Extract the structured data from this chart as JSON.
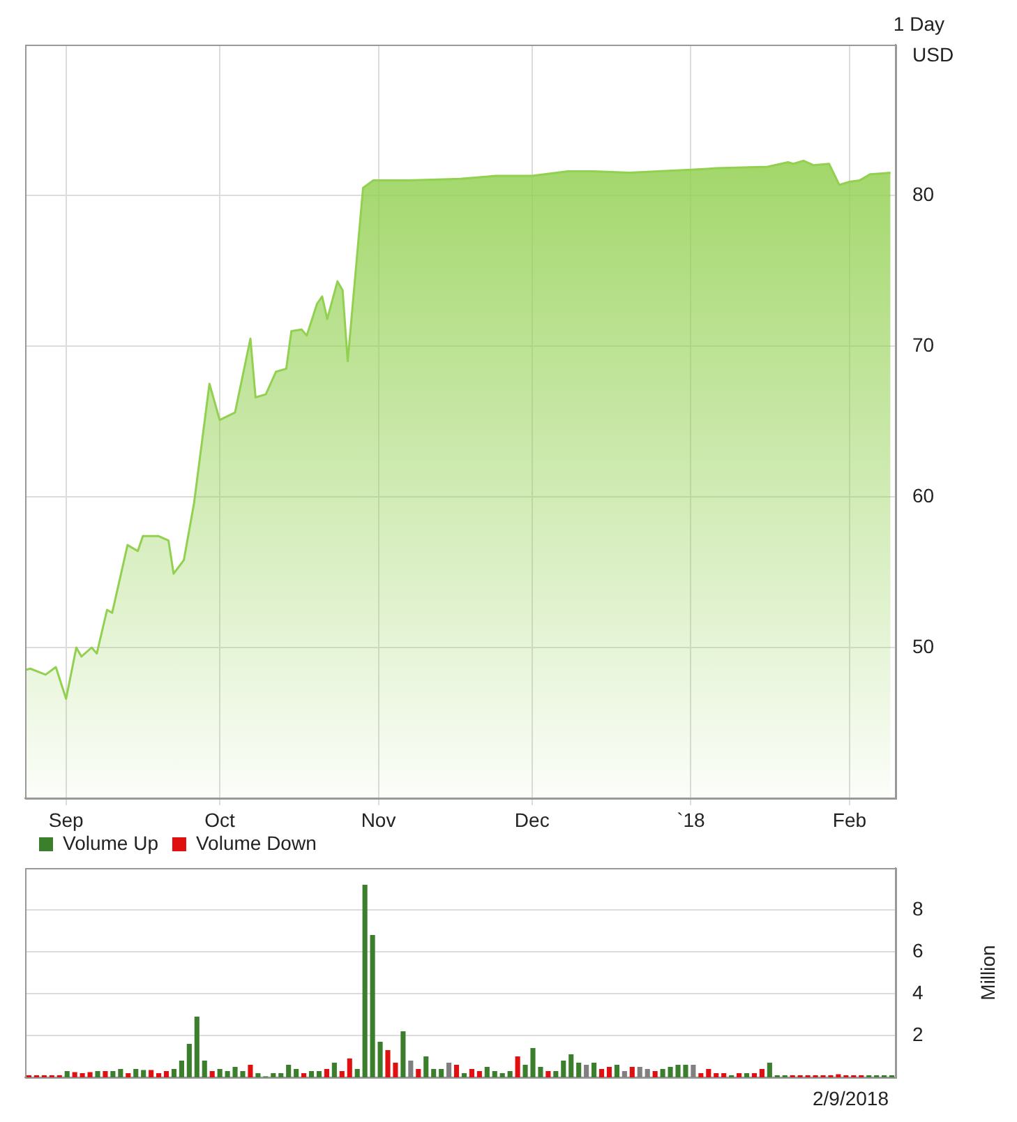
{
  "chart_data": [
    {
      "type": "area",
      "ylabel": "USD",
      "annotations": [
        "1 Day"
      ],
      "x": [
        "2017-08-24",
        "2017-08-25",
        "2017-08-28",
        "2017-08-30",
        "2017-09-01",
        "2017-09-03",
        "2017-09-04",
        "2017-09-06",
        "2017-09-07",
        "2017-09-09",
        "2017-09-10",
        "2017-09-13",
        "2017-09-15",
        "2017-09-16",
        "2017-09-19",
        "2017-09-21",
        "2017-09-22",
        "2017-09-24",
        "2017-09-26",
        "2017-09-29",
        "2017-10-01",
        "2017-10-04",
        "2017-10-07",
        "2017-10-08",
        "2017-10-10",
        "2017-10-12",
        "2017-10-14",
        "2017-10-15",
        "2017-10-17",
        "2017-10-18",
        "2017-10-20",
        "2017-10-21",
        "2017-10-22",
        "2017-10-24",
        "2017-10-25",
        "2017-10-26",
        "2017-10-29",
        "2017-10-31",
        "2017-11-07",
        "2017-11-17",
        "2017-11-24",
        "2017-12-01",
        "2017-12-08",
        "2017-12-13",
        "2017-12-20",
        "2018-01-01",
        "2018-01-06",
        "2018-01-16",
        "2018-01-20",
        "2018-01-21",
        "2018-01-23",
        "2018-01-25",
        "2018-01-28",
        "2018-01-30",
        "2018-02-01",
        "2018-02-03",
        "2018-02-05",
        "2018-02-09"
      ],
      "series": [
        {
          "color": "#92d050",
          "values": [
            48.5,
            48.6,
            48.2,
            48.7,
            46.6,
            50.0,
            49.4,
            50.0,
            49.6,
            52.5,
            52.3,
            56.8,
            56.4,
            57.4,
            57.4,
            57.1,
            54.9,
            55.8,
            59.6,
            67.5,
            65.1,
            65.6,
            70.5,
            66.6,
            66.8,
            68.3,
            68.5,
            71.0,
            71.1,
            70.7,
            72.8,
            73.3,
            71.8,
            74.3,
            73.7,
            69.0,
            80.5,
            81.0,
            81.0,
            81.1,
            81.3,
            81.3,
            81.6,
            81.6,
            81.5,
            81.7,
            81.8,
            81.9,
            82.2,
            82.1,
            82.3,
            82.0,
            82.1,
            80.7,
            80.9,
            81.0,
            81.4,
            81.5
          ]
        }
      ],
      "xlim": [
        "2017-08-24",
        "2018-02-10"
      ],
      "xticks": [
        {
          "value": "2017-09-01",
          "label": "Sep"
        },
        {
          "value": "2017-10-01",
          "label": "Oct"
        },
        {
          "value": "2017-11-01",
          "label": "Nov"
        },
        {
          "value": "2017-12-01",
          "label": "Dec"
        },
        {
          "value": "2018-01-01",
          "label": "`18"
        },
        {
          "value": "2018-02-01",
          "label": "Feb"
        }
      ],
      "ylim": [
        40,
        90
      ],
      "yticks": [
        50,
        60,
        70,
        80
      ],
      "grid": true
    },
    {
      "type": "bar",
      "ylabel": "Million",
      "annotations": [
        "2/9/2018"
      ],
      "stacked": true,
      "legend": "top left",
      "grid": "y",
      "tick_labels": "y",
      "ylim": [
        0,
        10
      ],
      "yticks": [
        2,
        4,
        6,
        8
      ],
      "categories": [
        null,
        null,
        null,
        null,
        null,
        null,
        null,
        null,
        null,
        null,
        null,
        null,
        null,
        null,
        null,
        null,
        null,
        null,
        null,
        null,
        null,
        null,
        null,
        null,
        null,
        null,
        null,
        null,
        null,
        null,
        null,
        null,
        null,
        null,
        null,
        null,
        null,
        null,
        null,
        null,
        null,
        null,
        null,
        null,
        null,
        null,
        null,
        null,
        null,
        null,
        null,
        null,
        null,
        null,
        null,
        null,
        null,
        null,
        null,
        null,
        null,
        null,
        null,
        null,
        null,
        null,
        null,
        null,
        null,
        null,
        null,
        null,
        null,
        null,
        null,
        null,
        null,
        null,
        null,
        null,
        null,
        null,
        null,
        null,
        null,
        null,
        null,
        null,
        null,
        null,
        null,
        null,
        null,
        null,
        null,
        null,
        null,
        null,
        null,
        null,
        null,
        null,
        null,
        null,
        null,
        null,
        null,
        null,
        null,
        null,
        null,
        null,
        null,
        null
      ],
      "series": [
        {
          "name": "Volume Up",
          "color": "#3b7f2c",
          "values": [
            null,
            null,
            null,
            null,
            null,
            0.3,
            null,
            null,
            null,
            0.3,
            null,
            0.3,
            0.4,
            null,
            0.4,
            0.35,
            null,
            null,
            null,
            0.4,
            0.8,
            1.6,
            2.9,
            0.8,
            null,
            0.4,
            0.3,
            0.5,
            0.3,
            null,
            0.2,
            0.05,
            0.2,
            0.2,
            0.6,
            0.4,
            null,
            0.3,
            0.3,
            null,
            0.7,
            null,
            null,
            0.4,
            9.2,
            6.8,
            1.7,
            null,
            null,
            2.2,
            null,
            null,
            1.0,
            0.4,
            0.4,
            null,
            null,
            0.2,
            null,
            null,
            0.5,
            0.3,
            0.2,
            0.3,
            null,
            0.6,
            1.4,
            0.5,
            null,
            0.3,
            0.8,
            1.1,
            0.7,
            null,
            0.7,
            null,
            null,
            0.6,
            null,
            null,
            null,
            null,
            null,
            0.4,
            0.5,
            0.6,
            0.6,
            null,
            null,
            null,
            null,
            null,
            0.1,
            null,
            0.2,
            null,
            null,
            0.7,
            0.1,
            0.1,
            null,
            null,
            null,
            null,
            null,
            null,
            null,
            null,
            null,
            null,
            0.1,
            0.1,
            0.1,
            0.1
          ]
        },
        {
          "name": "Volume Down",
          "color": "#e01010",
          "values": [
            0.1,
            0.1,
            0.1,
            0.1,
            0.1,
            null,
            0.25,
            0.2,
            0.25,
            null,
            0.3,
            null,
            null,
            0.2,
            null,
            null,
            0.35,
            0.2,
            0.3,
            null,
            null,
            null,
            null,
            null,
            0.3,
            null,
            null,
            null,
            null,
            0.6,
            null,
            null,
            null,
            null,
            null,
            null,
            0.2,
            null,
            null,
            0.4,
            null,
            0.3,
            0.9,
            null,
            null,
            null,
            null,
            1.3,
            0.7,
            null,
            null,
            0.4,
            null,
            null,
            null,
            null,
            0.6,
            null,
            0.4,
            0.3,
            null,
            null,
            null,
            null,
            1.0,
            null,
            null,
            null,
            0.3,
            null,
            null,
            null,
            null,
            null,
            null,
            0.4,
            0.5,
            null,
            null,
            0.5,
            null,
            null,
            0.3,
            null,
            null,
            null,
            null,
            null,
            0.2,
            0.4,
            0.2,
            0.2,
            null,
            0.2,
            null,
            0.2,
            0.4,
            null,
            null,
            null,
            0.1,
            0.1,
            0.1,
            0.1,
            0.1,
            0.1,
            0.15,
            0.1,
            0.1,
            0.1,
            null,
            null,
            null,
            null
          ]
        },
        {
          "color": "#808080",
          "values": [
            null,
            null,
            null,
            null,
            null,
            null,
            null,
            null,
            null,
            null,
            null,
            null,
            null,
            null,
            null,
            null,
            null,
            null,
            null,
            null,
            null,
            null,
            null,
            null,
            null,
            null,
            null,
            null,
            null,
            null,
            null,
            null,
            null,
            null,
            null,
            null,
            null,
            null,
            null,
            null,
            null,
            null,
            null,
            null,
            null,
            null,
            null,
            null,
            null,
            null,
            0.8,
            null,
            null,
            null,
            null,
            0.7,
            null,
            null,
            null,
            null,
            null,
            null,
            null,
            null,
            null,
            null,
            null,
            null,
            null,
            null,
            null,
            null,
            null,
            0.6,
            null,
            null,
            null,
            null,
            0.3,
            null,
            0.5,
            0.4,
            null,
            null,
            null,
            null,
            null,
            0.6,
            null,
            null,
            null,
            null,
            null,
            null,
            null,
            null,
            null,
            null,
            null,
            null,
            null,
            null,
            null,
            null,
            null,
            null,
            null,
            null,
            null,
            null,
            null,
            null,
            null,
            null
          ]
        }
      ]
    }
  ]
}
